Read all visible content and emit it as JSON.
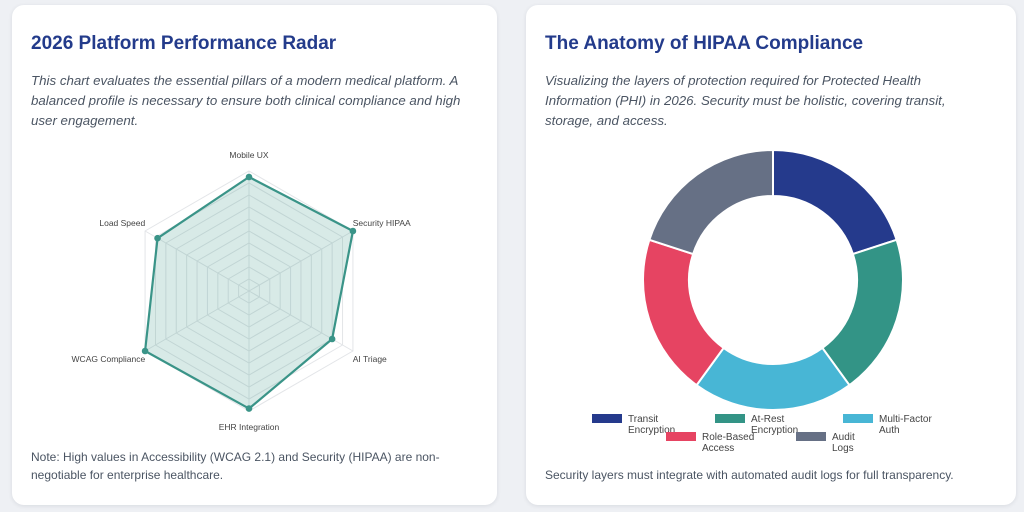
{
  "radar_card": {
    "title": "2026 Platform Performance Radar",
    "description": "This chart evaluates the essential pillars of a modern medical platform. A balanced profile is necessary to ensure both clinical compliance and high user engagement.",
    "note": "Note: High values in Accessibility (WCAG 2.1) and Security (HIPAA) are non-negotiable for enterprise healthcare."
  },
  "donut_card": {
    "title": "The Anatomy of HIPAA Compliance",
    "description": "Visualizing the layers of protection required for Protected Health Information (PHI) in 2026. Security must be holistic, covering transit, storage, and access.",
    "note": "Security layers must integrate with automated audit logs for full transparency."
  },
  "chart_data": [
    {
      "type": "radar",
      "title": "",
      "axes": [
        "Mobile UX",
        "Security HIPAA",
        "AI Triage",
        "EHR Integration",
        "WCAG Compliance",
        "Load Speed"
      ],
      "series": [
        {
          "values": [
            95,
            100,
            80,
            98,
            100,
            88
          ]
        }
      ],
      "r_range": [
        0,
        100
      ],
      "grid": true,
      "colors": {
        "line": "#3a9488",
        "fill": "rgba(58,148,136,0.2)",
        "grid": "#e3e5e8"
      }
    },
    {
      "type": "pie",
      "variant": "doughnut",
      "title": "",
      "labels": [
        "Transit Encryption",
        "At-Rest Encryption",
        "Multi-Factor Auth",
        "Role-Based Access",
        "Audit Logs"
      ],
      "values": [
        20,
        20,
        20,
        20,
        20
      ],
      "colors": [
        "#253a8c",
        "#339486",
        "#48b6d5",
        "#e64462",
        "#667085"
      ],
      "legend": "bottom"
    }
  ]
}
